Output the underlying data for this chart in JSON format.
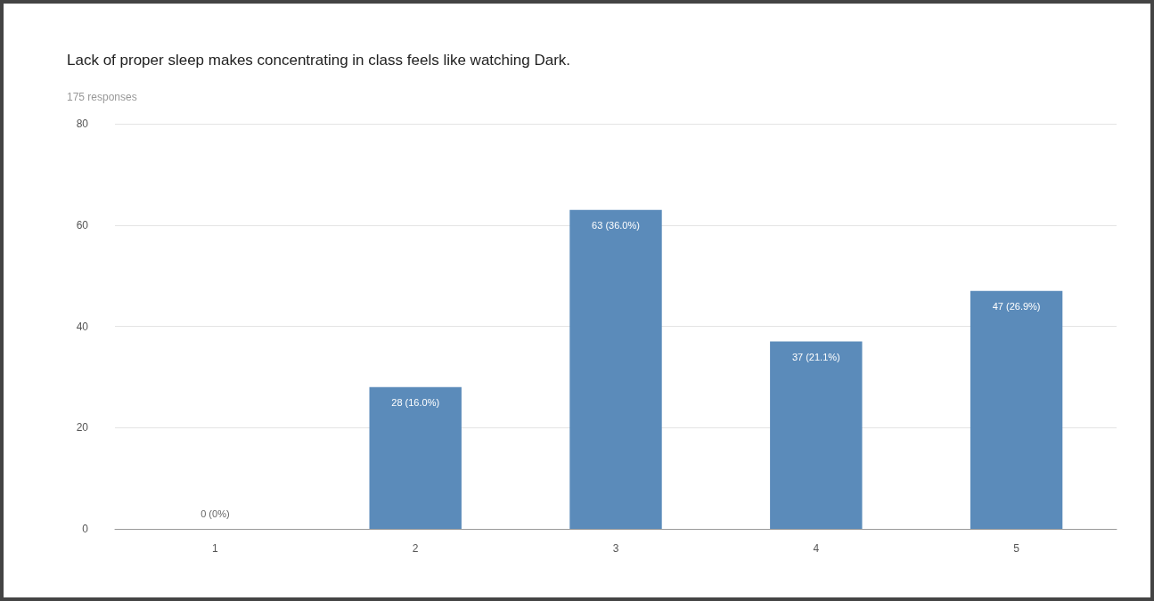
{
  "chart_data": {
    "type": "bar",
    "title": "Lack of proper sleep makes concentrating in class feels like watching Dark.",
    "subtitle": "175 responses",
    "categories": [
      "1",
      "2",
      "3",
      "4",
      "5"
    ],
    "values": [
      0,
      28,
      63,
      37,
      47
    ],
    "value_labels": [
      "0 (0%)",
      "28 (16.0%)",
      "63 (36.0%)",
      "37 (21.1%)",
      "47 (26.9%)"
    ],
    "color": "#5b8bba",
    "ylim": [
      0,
      80
    ],
    "yticks": [
      0,
      20,
      40,
      60,
      80
    ],
    "grid": "y"
  }
}
